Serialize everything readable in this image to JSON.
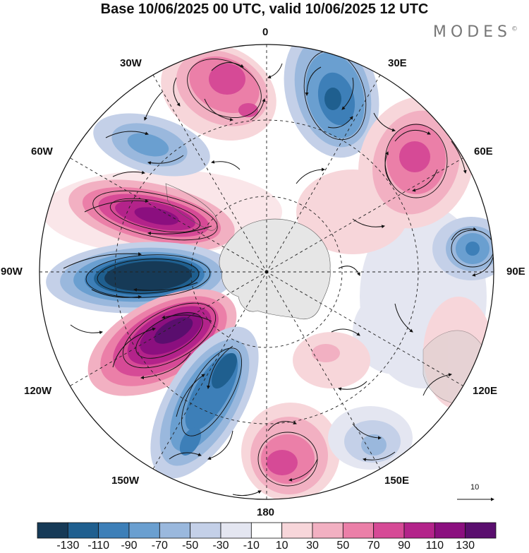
{
  "title": "Base 10/06/2025 00 UTC, valid 10/06/2025 12 UTC",
  "brand": "MODES",
  "brand_mark": "©",
  "longitude_labels": {
    "lon_0": "0",
    "lon_30e": "30E",
    "lon_60e": "60E",
    "lon_90e": "90E",
    "lon_120e": "120E",
    "lon_150e": "150E",
    "lon_180": "180",
    "lon_150w": "150W",
    "lon_120w": "120W",
    "lon_90w": "90W",
    "lon_60w": "60W",
    "lon_30w": "30W"
  },
  "reference_vector_label": "10",
  "colorbar": {
    "labels": [
      "-130",
      "-110",
      "-90",
      "-70",
      "-50",
      "-30",
      "-10",
      "10",
      "30",
      "50",
      "70",
      "90",
      "110",
      "130"
    ],
    "colors": [
      "#163a57",
      "#1f5f8f",
      "#3d7fb8",
      "#6a9fd0",
      "#9ab8dd",
      "#c4d0e8",
      "#e4e6f1",
      "#ffffff",
      "#f7d6da",
      "#f2b0c2",
      "#eb7fa8",
      "#d64a96",
      "#b3238a",
      "#8b0f7f",
      "#5a0e6e"
    ]
  },
  "colors": {
    "land": "#e6e6e6",
    "vector": "#111111"
  }
}
